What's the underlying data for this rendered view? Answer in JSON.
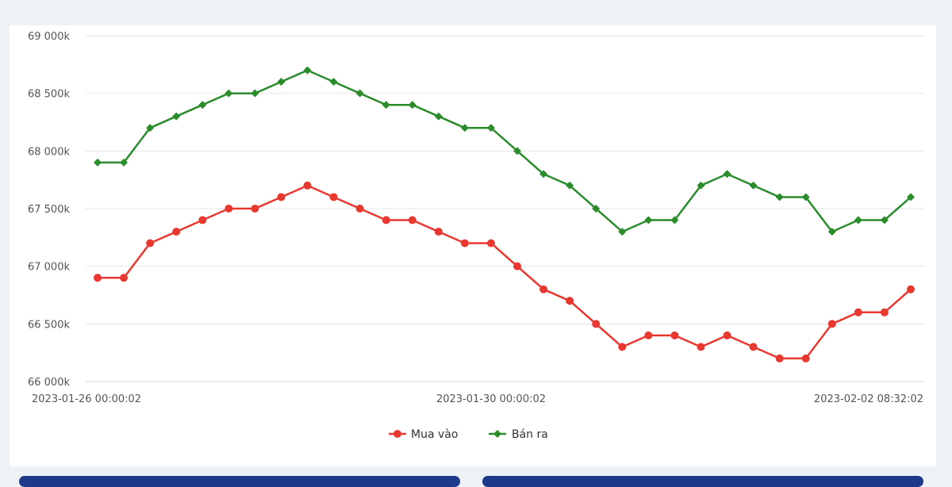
{
  "chart_data": {
    "type": "line",
    "x_tick_labels": [
      "2023-01-26 00:00:02",
      "2023-01-30 00:00:02",
      "2023-02-02 08:32:02"
    ],
    "y_tick_labels": [
      "66 000k",
      "66 500k",
      "67 000k",
      "67 500k",
      "68 000k",
      "68 500k",
      "69 000k"
    ],
    "y_ticks": [
      66000,
      66500,
      67000,
      67500,
      68000,
      68500,
      69000
    ],
    "ylim": [
      66000,
      69000
    ],
    "grid": true,
    "legend_position": "bottom-center",
    "series": [
      {
        "name": "Mua vào",
        "color": "#e8382f",
        "marker": "circle",
        "values": [
          66900,
          66900,
          67200,
          67300,
          67400,
          67500,
          67500,
          67600,
          67700,
          67600,
          67500,
          67400,
          67400,
          67300,
          67200,
          67200,
          67000,
          66800,
          66700,
          66500,
          66300,
          66400,
          66400,
          66300,
          66400,
          66300,
          66200,
          66200,
          66500,
          66600,
          66600,
          66800
        ]
      },
      {
        "name": "Bán ra",
        "color": "#2a8c2a",
        "marker": "diamond",
        "values": [
          67900,
          67900,
          68200,
          68300,
          68400,
          68500,
          68500,
          68600,
          68700,
          68600,
          68500,
          68400,
          68400,
          68300,
          68200,
          68200,
          68000,
          67800,
          67700,
          67500,
          67300,
          67400,
          67400,
          67700,
          67800,
          67700,
          67600,
          67600,
          67300,
          67400,
          67400,
          67600
        ]
      }
    ]
  }
}
